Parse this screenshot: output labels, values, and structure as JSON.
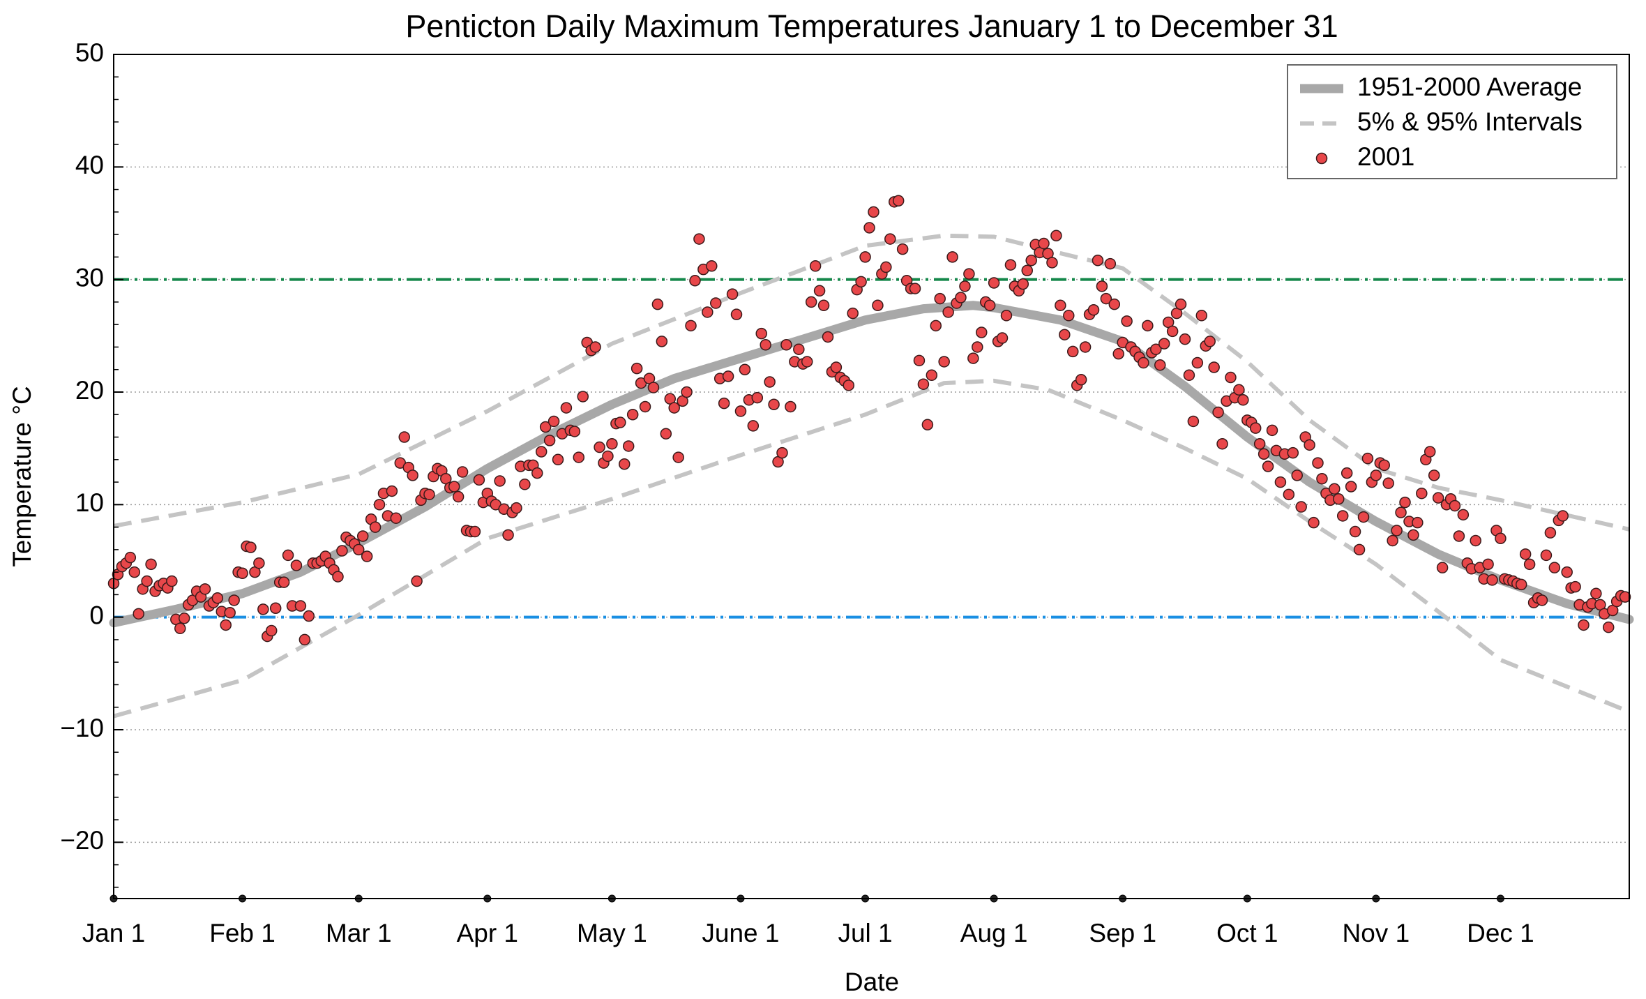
{
  "chart_data": {
    "type": "scatter",
    "title": "Penticton Daily Maximum Temperatures January 1 to December 31",
    "xlabel": "Date",
    "ylabel": "Temperature °C",
    "xlim": [
      0,
      365
    ],
    "ylim": [
      -25,
      50
    ],
    "xticks": [
      {
        "value": 0,
        "label": "Jan 1"
      },
      {
        "value": 31,
        "label": "Feb 1"
      },
      {
        "value": 59,
        "label": "Mar 1"
      },
      {
        "value": 90,
        "label": "Apr 1"
      },
      {
        "value": 120,
        "label": "May 1"
      },
      {
        "value": 151,
        "label": "June 1"
      },
      {
        "value": 181,
        "label": "Jul 1"
      },
      {
        "value": 212,
        "label": "Aug 1"
      },
      {
        "value": 243,
        "label": "Sep 1"
      },
      {
        "value": 273,
        "label": "Oct 1"
      },
      {
        "value": 304,
        "label": "Nov 1"
      },
      {
        "value": 334,
        "label": "Dec 1"
      }
    ],
    "yticks": [
      {
        "value": -20,
        "label": "−20"
      },
      {
        "value": -10,
        "label": "−10"
      },
      0,
      10,
      20,
      30,
      40,
      50
    ],
    "yminorticks": [
      -24,
      -22,
      -20,
      -18,
      -16,
      -14,
      -12,
      -10,
      -8,
      -6,
      -4,
      -2,
      0,
      2,
      4,
      6,
      8,
      10,
      12,
      14,
      16,
      18,
      20,
      22,
      24,
      26,
      28,
      30,
      32,
      34,
      36,
      38,
      40,
      42,
      44,
      46,
      48,
      50
    ],
    "grid": true,
    "legend": "upper right",
    "hlines": [
      {
        "value": 30,
        "color": "#14874a"
      },
      {
        "value": 0,
        "color": "#1a8fe3"
      }
    ],
    "series": [
      {
        "name": "1951-2000 Average",
        "kind": "line",
        "color": "#a8a8a8",
        "x": [
          0,
          15,
          31,
          45,
          59,
          75,
          90,
          105,
          120,
          135,
          151,
          166,
          181,
          195,
          207,
          212,
          228,
          243,
          258,
          273,
          288,
          304,
          319,
          334,
          350,
          365
        ],
        "values": [
          -0.5,
          0.7,
          2.1,
          4,
          6.6,
          9.8,
          13.2,
          16.2,
          18.9,
          21.2,
          23,
          24.7,
          26.4,
          27.4,
          27.7,
          27.5,
          26.4,
          24.5,
          20.5,
          16,
          12,
          8.5,
          5.6,
          3.3,
          1.2,
          -0.2
        ]
      },
      {
        "name": "5% & 95% Intervals",
        "kind": "band",
        "color": "#c4c4c4",
        "x": [
          0,
          31,
          59,
          90,
          120,
          151,
          181,
          200,
          212,
          225,
          243,
          258,
          273,
          288,
          304,
          319,
          334,
          365
        ],
        "values": [
          8.1,
          10.2,
          12.7,
          18.3,
          24.3,
          28.8,
          33,
          33.9,
          33.8,
          32.6,
          31,
          27,
          22.7,
          17.5,
          13.2,
          11.5,
          10.4,
          7.8
        ],
        "lower": [
          -8.8,
          -5.6,
          0.2,
          7,
          10.5,
          14.4,
          18,
          20.8,
          21,
          20.2,
          17.5,
          15,
          12.3,
          8.5,
          4.7,
          0.5,
          -3.8,
          -8.4
        ]
      },
      {
        "name": "2001",
        "kind": "points",
        "color": "#e8474a",
        "x": [
          0,
          1,
          2,
          3,
          4,
          5,
          6,
          7,
          8,
          9,
          10,
          11,
          12,
          13,
          14,
          15,
          16,
          17,
          18,
          19,
          20,
          21,
          22,
          23,
          24,
          25,
          26,
          27,
          28,
          29,
          30,
          31,
          32,
          33,
          34,
          35,
          36,
          37,
          38,
          39,
          40,
          41,
          42,
          43,
          44,
          45,
          46,
          47,
          48,
          49,
          50,
          51,
          52,
          53,
          54,
          55,
          56,
          57,
          58,
          59,
          60,
          61,
          62,
          63,
          64,
          65,
          66,
          67,
          68,
          69,
          70,
          71,
          72,
          73,
          74,
          75,
          76,
          77,
          78,
          79,
          80,
          81,
          82,
          83,
          84,
          85,
          86,
          87,
          88,
          89,
          90,
          91,
          92,
          93,
          94,
          95,
          96,
          97,
          98,
          99,
          100,
          101,
          102,
          103,
          104,
          105,
          106,
          107,
          108,
          109,
          110,
          111,
          112,
          113,
          114,
          115,
          116,
          117,
          118,
          119,
          120,
          121,
          122,
          123,
          124,
          125,
          126,
          127,
          128,
          129,
          130,
          131,
          132,
          133,
          134,
          135,
          136,
          137,
          138,
          139,
          140,
          141,
          142,
          143,
          144,
          145,
          146,
          147,
          148,
          149,
          150,
          151,
          152,
          153,
          154,
          155,
          156,
          157,
          158,
          159,
          160,
          161,
          162,
          163,
          164,
          165,
          166,
          167,
          168,
          169,
          170,
          171,
          172,
          173,
          174,
          175,
          176,
          177,
          178,
          179,
          180,
          181,
          182,
          183,
          184,
          185,
          186,
          187,
          188,
          189,
          190,
          191,
          192,
          193,
          194,
          195,
          196,
          197,
          198,
          199,
          200,
          201,
          202,
          203,
          204,
          205,
          206,
          207,
          208,
          209,
          210,
          211,
          212,
          213,
          214,
          215,
          216,
          217,
          218,
          219,
          220,
          221,
          222,
          223,
          224,
          225,
          226,
          227,
          228,
          229,
          230,
          231,
          232,
          233,
          234,
          235,
          236,
          237,
          238,
          239,
          240,
          241,
          242,
          243,
          244,
          245,
          246,
          247,
          248,
          249,
          250,
          251,
          252,
          253,
          254,
          255,
          256,
          257,
          258,
          259,
          260,
          261,
          262,
          263,
          264,
          265,
          266,
          267,
          268,
          269,
          270,
          271,
          272,
          273,
          274,
          275,
          276,
          277,
          278,
          279,
          280,
          281,
          282,
          283,
          284,
          285,
          286,
          287,
          288,
          289,
          290,
          291,
          292,
          293,
          294,
          295,
          296,
          297,
          298,
          299,
          300,
          301,
          302,
          303,
          304,
          305,
          306,
          307,
          308,
          309,
          310,
          311,
          312,
          313,
          314,
          315,
          316,
          317,
          318,
          319,
          320,
          321,
          322,
          323,
          324,
          325,
          326,
          327,
          328,
          329,
          330,
          331,
          332,
          333,
          334,
          335,
          336,
          337,
          338,
          339,
          340,
          341,
          342,
          343,
          344,
          345,
          346,
          347,
          348,
          349,
          350,
          351,
          352,
          353,
          354,
          355,
          356,
          357,
          358,
          359,
          360,
          361,
          362,
          363,
          364
        ],
        "values": [
          3.0,
          3.8,
          4.5,
          4.8,
          5.3,
          4.0,
          0.3,
          2.5,
          3.2,
          4.7,
          2.3,
          2.8,
          3.0,
          2.6,
          3.2,
          -0.2,
          -1.0,
          -0.1,
          1.1,
          1.5,
          2.3,
          1.8,
          2.5,
          1.0,
          1.3,
          1.7,
          0.5,
          -0.7,
          0.4,
          1.5,
          4.0,
          3.9,
          6.3,
          6.2,
          4.0,
          4.8,
          0.7,
          -1.7,
          -1.2,
          0.8,
          3.1,
          3.1,
          5.5,
          1.0,
          4.6,
          1.0,
          -2.0,
          0.1,
          4.8,
          4.8,
          5.0,
          5.4,
          4.8,
          4.2,
          3.6,
          5.9,
          7.1,
          6.8,
          6.5,
          6.0,
          7.2,
          5.4,
          8.7,
          8.0,
          10.0,
          11.0,
          9.0,
          11.2,
          8.8,
          13.7,
          16.0,
          13.3,
          12.6,
          3.2,
          10.4,
          11.0,
          10.9,
          12.5,
          13.2,
          13.0,
          12.3,
          11.5,
          11.6,
          10.7,
          12.9,
          7.7,
          7.6,
          7.6,
          12.2,
          10.2,
          11.0,
          10.3,
          10.0,
          12.1,
          9.6,
          7.3,
          9.3,
          9.7,
          13.4,
          11.8,
          13.5,
          13.5,
          12.8,
          14.7,
          16.9,
          15.7,
          17.4,
          14.0,
          16.3,
          18.6,
          16.6,
          16.5,
          14.2,
          19.6,
          24.4,
          23.7,
          24.0,
          15.1,
          13.7,
          14.3,
          15.4,
          17.2,
          17.3,
          13.6,
          15.2,
          18.0,
          22.1,
          20.8,
          18.7,
          21.2,
          20.4,
          27.8,
          24.5,
          16.3,
          19.4,
          18.6,
          14.2,
          19.2,
          20.0,
          25.9,
          29.9,
          33.6,
          30.9,
          27.1,
          31.2,
          27.9,
          21.2,
          19.0,
          21.4,
          28.7,
          26.9,
          18.3,
          22.0,
          19.3,
          17.0,
          19.5,
          25.2,
          24.2,
          20.9,
          18.9,
          13.8,
          14.6,
          24.2,
          18.7,
          22.7,
          23.8,
          22.5,
          22.7,
          28.0,
          31.2,
          29.0,
          27.7,
          24.9,
          21.8,
          22.2,
          21.3,
          21.0,
          20.6,
          27.0,
          29.1,
          29.8,
          32.0,
          34.6,
          36.0,
          27.7,
          30.5,
          31.1,
          33.6,
          36.9,
          37.0,
          32.7,
          29.9,
          29.2,
          29.2,
          22.8,
          20.7,
          17.1,
          21.5,
          25.9,
          28.3,
          22.7,
          27.1,
          32.0,
          27.9,
          28.4,
          29.4,
          30.5,
          23.0,
          24.0,
          25.3,
          28.0,
          27.7,
          29.7,
          24.5,
          24.8,
          26.8,
          31.3,
          29.4,
          29.0,
          29.6,
          30.8,
          31.7,
          33.1,
          32.4,
          33.2,
          32.3,
          31.5,
          33.9,
          27.7,
          25.1,
          26.8,
          23.6,
          20.6,
          21.1,
          24.0,
          26.9,
          27.3,
          31.7,
          29.4,
          28.3,
          31.4,
          27.8,
          23.4,
          24.4,
          26.3,
          24.0,
          23.6,
          23.1,
          22.6,
          25.9,
          23.5,
          23.8,
          22.4,
          24.3,
          26.2,
          25.4,
          27.0,
          27.8,
          24.7,
          21.5,
          17.4,
          22.6,
          26.8,
          24.1,
          24.5,
          22.2,
          18.2,
          15.4,
          19.2,
          21.3,
          19.5,
          20.2,
          19.3,
          17.5,
          17.3,
          16.8,
          15.4,
          14.5,
          13.4,
          16.6,
          14.8,
          12.0,
          14.5,
          10.9,
          14.6,
          12.6,
          9.8,
          16.0,
          15.3,
          8.4,
          13.7,
          12.3,
          11.0,
          10.4,
          11.4,
          10.5,
          9.0,
          12.8,
          11.6,
          7.6,
          6.0,
          8.9,
          14.1,
          12.0,
          12.6,
          13.7,
          13.5,
          11.9,
          6.8,
          7.7,
          9.3,
          10.2,
          8.5,
          7.3,
          8.4,
          11.0,
          14.0,
          14.7,
          12.6,
          10.6,
          4.4,
          10.0,
          10.5,
          9.9,
          7.2,
          9.1,
          4.8,
          4.3,
          6.8,
          4.4,
          3.4,
          4.7,
          3.3,
          7.7,
          7.0,
          3.4,
          3.3,
          3.2,
          3.0,
          2.9,
          5.6,
          4.7,
          1.3,
          1.7,
          1.5,
          5.5,
          7.5,
          4.4,
          8.6,
          9.0,
          4.0,
          2.6,
          2.7,
          1.1,
          -0.7,
          0.9,
          1.2,
          2.1,
          1.1,
          0.3,
          -0.9,
          0.6,
          1.4,
          1.9,
          1.8
        ]
      }
    ]
  }
}
